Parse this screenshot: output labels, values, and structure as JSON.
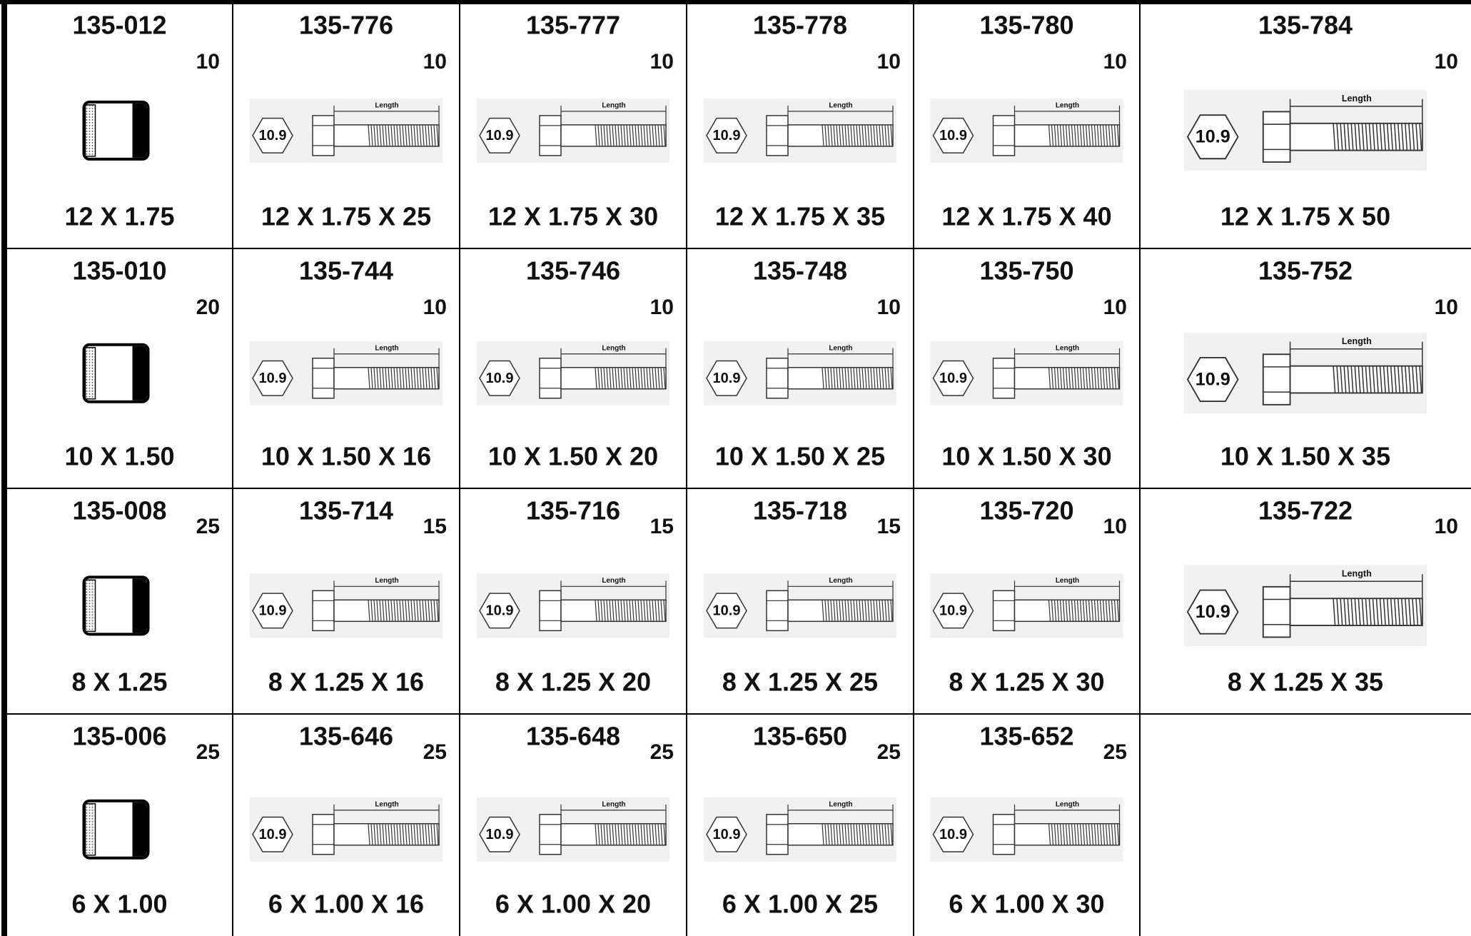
{
  "rows": [
    {
      "cells": [
        {
          "part": "135-012",
          "qty": 10,
          "size": "12 X 1.75"
        },
        {
          "part": "135-776",
          "qty": 10,
          "size": "12 X 1.75 X 25"
        },
        {
          "part": "135-777",
          "qty": 10,
          "size": "12 X 1.75 X 30"
        },
        {
          "part": "135-778",
          "qty": 10,
          "size": "12 X 1.75 X 35"
        },
        {
          "part": "135-780",
          "qty": 10,
          "size": "12 X 1.75 X 40"
        },
        {
          "part": "135-784",
          "qty": 10,
          "size": "12 X 1.75 X 50"
        }
      ]
    },
    {
      "cells": [
        {
          "part": "135-010",
          "qty": 20,
          "size": "10 X 1.50"
        },
        {
          "part": "135-744",
          "qty": 10,
          "size": "10 X 1.50 X 16"
        },
        {
          "part": "135-746",
          "qty": 10,
          "size": "10 X 1.50 X 20"
        },
        {
          "part": "135-748",
          "qty": 10,
          "size": "10 X 1.50 X 25"
        },
        {
          "part": "135-750",
          "qty": 10,
          "size": "10 X 1.50 X 30"
        },
        {
          "part": "135-752",
          "qty": 10,
          "size": "10 X 1.50 X 35"
        }
      ]
    },
    {
      "cells": [
        {
          "part": "135-008",
          "qty": 25,
          "size": "8 X 1.25"
        },
        {
          "part": "135-714",
          "qty": 15,
          "size": "8 X 1.25 X 16"
        },
        {
          "part": "135-716",
          "qty": 15,
          "size": "8 X 1.25 X 20"
        },
        {
          "part": "135-718",
          "qty": 15,
          "size": "8 X 1.25 X 25"
        },
        {
          "part": "135-720",
          "qty": 10,
          "size": "8 X 1.25 X 30"
        },
        {
          "part": "135-722",
          "qty": 10,
          "size": "8 X 1.25 X 35"
        }
      ]
    },
    {
      "cells": [
        {
          "part": "135-006",
          "qty": 25,
          "size": "6 X 1.00"
        },
        {
          "part": "135-646",
          "qty": 25,
          "size": "6 X 1.00 X 16"
        },
        {
          "part": "135-648",
          "qty": 25,
          "size": "6 X 1.00 X 20"
        },
        {
          "part": "135-650",
          "qty": 25,
          "size": "6 X 1.00 X 25"
        },
        {
          "part": "135-652",
          "qty": 25,
          "size": "6 X 1.00 X 30"
        }
      ]
    }
  ],
  "bolt_drawing": {
    "grade": "10.9",
    "length_label": "Length"
  }
}
